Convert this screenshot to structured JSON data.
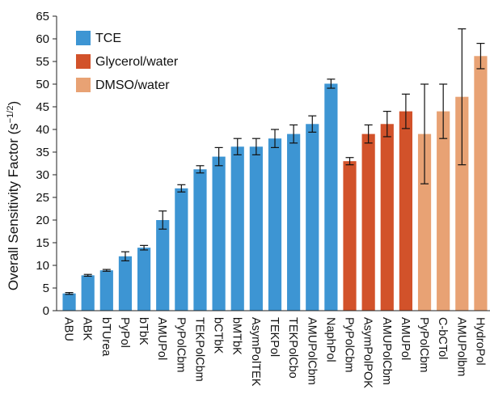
{
  "chart_data": {
    "type": "bar",
    "ylabel": "Overall Sensitivity Factor (s",
    "ylabel_exponent": "−1/2",
    "ylabel_suffix": ")",
    "ylim": [
      0,
      65
    ],
    "yticks": [
      0,
      5,
      10,
      15,
      20,
      25,
      30,
      35,
      40,
      45,
      50,
      55,
      60,
      65
    ],
    "grid": false,
    "legend_position": "top-left",
    "legend": [
      {
        "name": "TCE",
        "color": "#3d95d3"
      },
      {
        "name": "Glycerol/water",
        "color": "#d2522a"
      },
      {
        "name": "DMSO/water",
        "color": "#e8a274"
      }
    ],
    "bars": [
      {
        "category": "ABU",
        "value": 3.8,
        "error": 0.2,
        "group": 0
      },
      {
        "category": "ABK",
        "value": 7.8,
        "error": 0.2,
        "group": 0
      },
      {
        "category": "bTUrea",
        "value": 8.9,
        "error": 0.2,
        "group": 0
      },
      {
        "category": "PyPol",
        "value": 12,
        "error": 1,
        "group": 0
      },
      {
        "category": "bTbK",
        "value": 13.9,
        "error": 0.5,
        "group": 0
      },
      {
        "category": "AMUPol",
        "value": 20,
        "error": 2,
        "group": 0
      },
      {
        "category": "PyPolCbm",
        "value": 27,
        "error": 0.8,
        "group": 0
      },
      {
        "category": "TEKPolCbm",
        "value": 31.2,
        "error": 0.8,
        "group": 0
      },
      {
        "category": "bCTbK",
        "value": 34,
        "error": 2,
        "group": 0
      },
      {
        "category": "bMTbK",
        "value": 36.2,
        "error": 1.8,
        "group": 0
      },
      {
        "category": "AsymPolTEK",
        "value": 36.2,
        "error": 1.8,
        "group": 0
      },
      {
        "category": "TEKPol",
        "value": 38,
        "error": 2,
        "group": 0
      },
      {
        "category": "TEKPolCbo",
        "value": 39,
        "error": 2,
        "group": 0
      },
      {
        "category": "AMUPolCbm",
        "value": 41.2,
        "error": 1.8,
        "group": 0
      },
      {
        "category": "NaphPol",
        "value": 50.1,
        "error": 1,
        "group": 0
      },
      {
        "category": "PyPolCbm",
        "value": 33,
        "error": 0.8,
        "group": 1
      },
      {
        "category": "AsymPolPOK",
        "value": 39,
        "error": 2,
        "group": 1
      },
      {
        "category": "AMUPolCbm",
        "value": 41.2,
        "error": 2.8,
        "group": 1
      },
      {
        "category": "AMUPol",
        "value": 44,
        "error": 3.8,
        "group": 1
      },
      {
        "category": "PyPolCbm",
        "value": 39,
        "error": 11,
        "group": 2
      },
      {
        "category": "C-bCTol",
        "value": 44,
        "error": 6,
        "group": 2
      },
      {
        "category": "AMUPolbm",
        "value": 47.2,
        "error": 15,
        "group": 2
      },
      {
        "category": "HydroPol",
        "value": 56.2,
        "error": 2.8,
        "group": 2
      }
    ]
  }
}
